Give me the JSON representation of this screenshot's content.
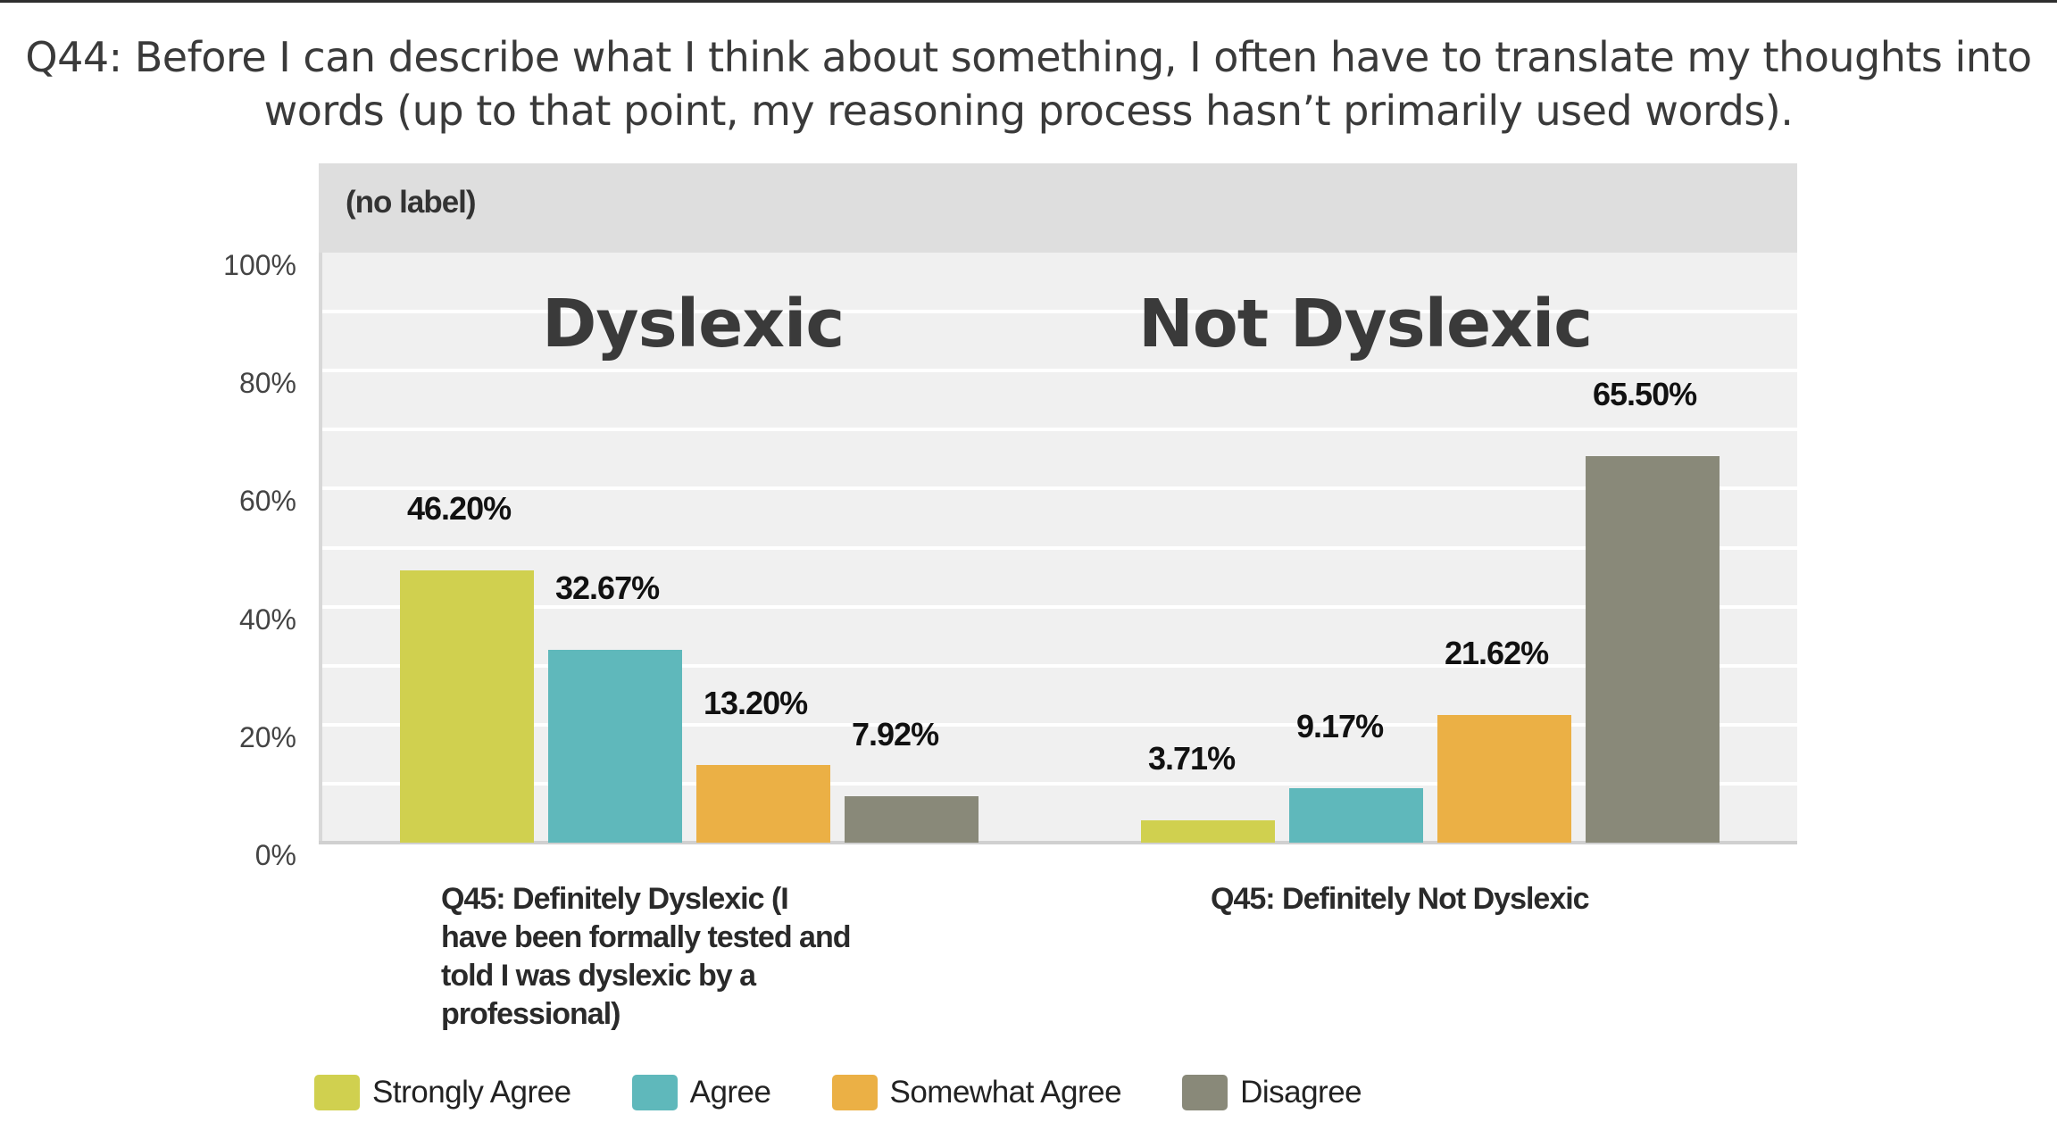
{
  "title": {
    "line1": "Q44: Before I can describe what I think about something, I often have to translate my thoughts into",
    "line2": "words (up to that point, my reasoning process hasn’t primarily used words)."
  },
  "panel_label": "(no label)",
  "y_ticks": [
    "100%",
    "80%",
    "60%",
    "40%",
    "20%",
    "0%"
  ],
  "groups": [
    {
      "title": "Dyslexic",
      "xlabel_lines": [
        "Q45: Definitely Dyslexic (I",
        "have been formally tested and",
        "told I was dyslexic by a",
        "professional)"
      ],
      "value_labels": [
        "46.20%",
        "32.67%",
        "13.20%",
        "7.92%"
      ]
    },
    {
      "title": "Not Dyslexic",
      "xlabel_lines": [
        "Q45: Definitely Not Dyslexic"
      ],
      "value_labels": [
        "3.71%",
        "9.17%",
        "21.62%",
        "65.50%"
      ]
    }
  ],
  "legend": [
    {
      "label": "Strongly Agree",
      "color": "#d0d04f"
    },
    {
      "label": "Agree",
      "color": "#5fb8bb"
    },
    {
      "label": "Somewhat Agree",
      "color": "#ebb045"
    },
    {
      "label": "Disagree",
      "color": "#898979"
    }
  ],
  "chart_data": {
    "type": "bar",
    "title": "Q44: Before I can describe what I think about something, I often have to translate my thoughts into words (up to that point, my reasoning process hasn’t primarily used words).",
    "subtitle": "(no label)",
    "categories": [
      "Q45: Definitely Dyslexic (I have been formally tested and told I was dyslexic by a professional)",
      "Q45: Definitely Not Dyslexic"
    ],
    "category_annotations": [
      "Dyslexic",
      "Not Dyslexic"
    ],
    "series": [
      {
        "name": "Strongly Agree",
        "color": "#d0d04f",
        "values": [
          46.2,
          3.71
        ]
      },
      {
        "name": "Agree",
        "color": "#5fb8bb",
        "values": [
          32.67,
          9.17
        ]
      },
      {
        "name": "Somewhat Agree",
        "color": "#ebb045",
        "values": [
          13.2,
          21.62
        ]
      },
      {
        "name": "Disagree",
        "color": "#898979",
        "values": [
          7.92,
          65.5
        ]
      }
    ],
    "xlabel": "",
    "ylabel": "",
    "ylim": [
      0,
      100
    ],
    "y_ticks": [
      "0%",
      "20%",
      "40%",
      "60%",
      "80%",
      "100%"
    ],
    "grid": true,
    "legend_position": "bottom",
    "value_labels": true
  }
}
